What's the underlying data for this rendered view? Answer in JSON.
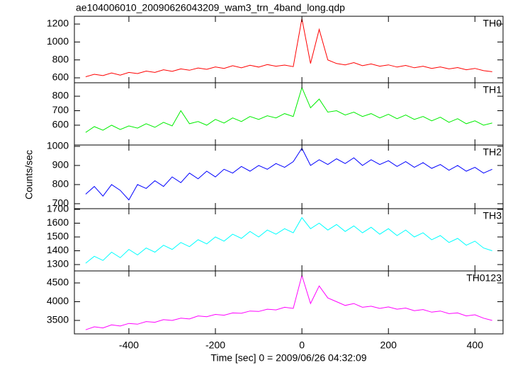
{
  "chart_data": [
    {
      "type": "line",
      "title": "ae104006010_20090626043209_wam3_trn_4band_long.qdp",
      "label": "TH0",
      "color": "#ff0000",
      "x": [
        -500,
        -480,
        -460,
        -440,
        -420,
        -400,
        -380,
        -360,
        -340,
        -320,
        -300,
        -280,
        -260,
        -240,
        -220,
        -200,
        -180,
        -160,
        -140,
        -120,
        -100,
        -80,
        -60,
        -40,
        -20,
        0,
        20,
        40,
        60,
        80,
        100,
        120,
        140,
        160,
        180,
        200,
        220,
        240,
        260,
        280,
        300,
        320,
        340,
        360,
        380,
        400,
        420,
        440
      ],
      "values": [
        612,
        640,
        625,
        655,
        630,
        660,
        648,
        675,
        660,
        690,
        672,
        700,
        685,
        710,
        695,
        722,
        705,
        735,
        712,
        740,
        720,
        748,
        730,
        742,
        725,
        1260,
        760,
        1140,
        800,
        760,
        745,
        770,
        735,
        755,
        730,
        745,
        720,
        738,
        712,
        730,
        705,
        722,
        700,
        715,
        690,
        705,
        680,
        668
      ],
      "xlim": [
        -526,
        465
      ],
      "xticks": [
        -400,
        -200,
        0,
        200,
        400
      ],
      "ylim": [
        545,
        1287
      ],
      "yticks": [
        600,
        800,
        1000,
        1200
      ]
    },
    {
      "type": "line",
      "label": "TH1",
      "color": "#00ee00",
      "x": [
        -500,
        -480,
        -460,
        -440,
        -420,
        -400,
        -380,
        -360,
        -340,
        -320,
        -300,
        -280,
        -260,
        -240,
        -220,
        -200,
        -180,
        -160,
        -140,
        -120,
        -100,
        -80,
        -60,
        -40,
        -20,
        0,
        20,
        40,
        60,
        80,
        100,
        120,
        140,
        160,
        180,
        200,
        220,
        240,
        260,
        280,
        300,
        320,
        340,
        360,
        380,
        400,
        420,
        440
      ],
      "values": [
        550,
        590,
        565,
        600,
        570,
        595,
        580,
        610,
        585,
        620,
        595,
        700,
        610,
        625,
        600,
        640,
        615,
        650,
        625,
        660,
        640,
        665,
        650,
        680,
        660,
        860,
        720,
        780,
        690,
        700,
        670,
        690,
        660,
        680,
        650,
        675,
        645,
        670,
        640,
        660,
        630,
        655,
        620,
        645,
        610,
        630,
        600,
        615
      ],
      "xlim": [
        -526,
        465
      ],
      "xticks": [
        -400,
        -200,
        0,
        200,
        400
      ],
      "ylim": [
        463,
        893
      ],
      "yticks": [
        600,
        700,
        800
      ]
    },
    {
      "type": "line",
      "label": "TH2",
      "ylabel": "Counts/sec",
      "color": "#0000ff",
      "x": [
        -500,
        -480,
        -460,
        -440,
        -420,
        -400,
        -380,
        -360,
        -340,
        -320,
        -300,
        -280,
        -260,
        -240,
        -220,
        -200,
        -180,
        -160,
        -140,
        -120,
        -100,
        -80,
        -60,
        -40,
        -20,
        0,
        20,
        40,
        60,
        80,
        100,
        120,
        140,
        160,
        180,
        200,
        220,
        240,
        260,
        280,
        300,
        320,
        340,
        360,
        380,
        400,
        420,
        440
      ],
      "values": [
        750,
        790,
        740,
        800,
        770,
        720,
        800,
        780,
        820,
        790,
        840,
        810,
        860,
        830,
        870,
        840,
        880,
        860,
        895,
        870,
        900,
        880,
        910,
        890,
        920,
        990,
        900,
        930,
        905,
        935,
        910,
        940,
        900,
        930,
        905,
        925,
        895,
        920,
        890,
        915,
        885,
        905,
        875,
        900,
        870,
        890,
        860,
        880
      ],
      "xlim": [
        -526,
        465
      ],
      "xticks": [
        -400,
        -200,
        0,
        200,
        400
      ],
      "ylim": [
        674,
        1007
      ],
      "yticks": [
        700,
        800,
        900,
        1000
      ]
    },
    {
      "type": "line",
      "label": "TH3",
      "color": "#00ffff",
      "x": [
        -500,
        -480,
        -460,
        -440,
        -420,
        -400,
        -380,
        -360,
        -340,
        -320,
        -300,
        -280,
        -260,
        -240,
        -220,
        -200,
        -180,
        -160,
        -140,
        -120,
        -100,
        -80,
        -60,
        -40,
        -20,
        0,
        20,
        40,
        60,
        80,
        100,
        120,
        140,
        160,
        180,
        200,
        220,
        240,
        260,
        280,
        300,
        320,
        340,
        360,
        380,
        400,
        420,
        440
      ],
      "values": [
        1310,
        1360,
        1330,
        1390,
        1350,
        1410,
        1370,
        1420,
        1390,
        1440,
        1410,
        1460,
        1430,
        1480,
        1450,
        1500,
        1470,
        1520,
        1490,
        1540,
        1500,
        1550,
        1520,
        1560,
        1530,
        1640,
        1560,
        1600,
        1550,
        1590,
        1540,
        1580,
        1530,
        1570,
        1520,
        1560,
        1510,
        1550,
        1500,
        1530,
        1480,
        1510,
        1460,
        1490,
        1440,
        1470,
        1420,
        1400
      ],
      "xlim": [
        -526,
        465
      ],
      "xticks": [
        -400,
        -200,
        0,
        200,
        400
      ],
      "ylim": [
        1254,
        1705
      ],
      "yticks": [
        1300,
        1400,
        1500,
        1600,
        1700
      ]
    },
    {
      "type": "line",
      "label": "TH0123",
      "xlabel": "Time [sec] 0 = 2009/06/26 04:32:09",
      "color": "#ff00ff",
      "x": [
        -500,
        -480,
        -460,
        -440,
        -420,
        -400,
        -380,
        -360,
        -340,
        -320,
        -300,
        -280,
        -260,
        -240,
        -220,
        -200,
        -180,
        -160,
        -140,
        -120,
        -100,
        -80,
        -60,
        -40,
        -20,
        0,
        20,
        40,
        60,
        80,
        100,
        120,
        140,
        160,
        180,
        200,
        220,
        240,
        260,
        280,
        300,
        320,
        340,
        360,
        380,
        400,
        420,
        440
      ],
      "values": [
        3250,
        3330,
        3300,
        3380,
        3350,
        3420,
        3400,
        3470,
        3450,
        3520,
        3500,
        3560,
        3540,
        3620,
        3600,
        3660,
        3640,
        3700,
        3690,
        3750,
        3740,
        3800,
        3780,
        3850,
        3820,
        4700,
        3950,
        4420,
        4100,
        4000,
        3900,
        3950,
        3850,
        3880,
        3820,
        3860,
        3800,
        3830,
        3760,
        3790,
        3720,
        3750,
        3680,
        3700,
        3620,
        3650,
        3560,
        3500
      ],
      "xlim": [
        -526,
        465
      ],
      "xticks": [
        -400,
        -200,
        0,
        200,
        400
      ],
      "ylim": [
        3141,
        4821
      ],
      "yticks": [
        3500,
        4000,
        4500
      ]
    }
  ]
}
